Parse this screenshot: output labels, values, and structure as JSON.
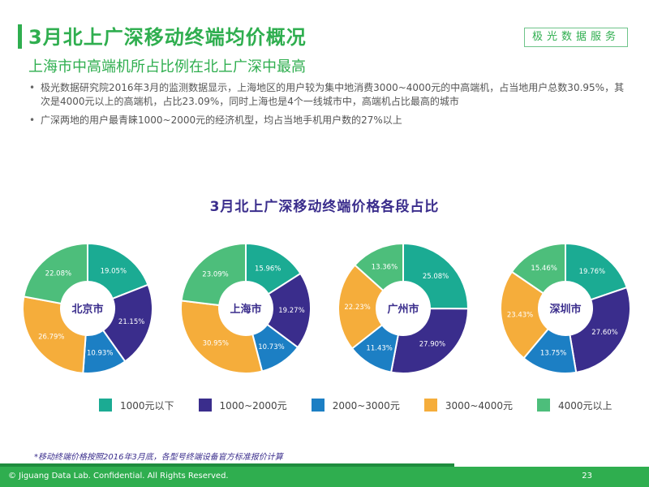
{
  "header": {
    "title": "3月北上广深移动终端均价概况",
    "brand": "极光数据服务",
    "subtitle": "上海市中高端机所占比例在北上广深中最高"
  },
  "bullets": [
    "极光数据研究院2016年3月的监测数据显示，上海地区的用户较为集中地消费3000~4000元的中高端机，占当地用户总数30.95%，其次是4000元以上的高端机，占比23.09%，同时上海也是4个一线城市中，高端机占比最高的城市",
    "广深两地的用户最青睐1000~2000元的经济机型，均占当地手机用户数的27%以上"
  ],
  "chart_data": {
    "type": "pie",
    "title": "3月北上广深移动终端价格各段占比",
    "categories": [
      "1000元以下",
      "1000~2000元",
      "2000~3000元",
      "3000~4000元",
      "4000元以上"
    ],
    "colors": [
      "#1bab93",
      "#3a2d8c",
      "#1c7fc4",
      "#f5ad3b",
      "#4dbe7b"
    ],
    "series": [
      {
        "name": "北京市",
        "values": [
          19.05,
          21.15,
          10.93,
          26.79,
          22.08
        ]
      },
      {
        "name": "上海市",
        "values": [
          15.96,
          19.27,
          10.73,
          30.95,
          23.09
        ]
      },
      {
        "name": "广州市",
        "values": [
          25.08,
          27.9,
          11.43,
          22.23,
          13.36
        ]
      },
      {
        "name": "深圳市",
        "values": [
          19.76,
          27.6,
          13.75,
          23.43,
          15.46
        ]
      }
    ]
  },
  "footnote": "*移动终端价格按照2016年3月底，各型号终端设备官方标准报价计算",
  "footer": {
    "copyright": "© Jiguang Data Lab. Confidential. All Rights Reserved.",
    "page_number": "23"
  }
}
